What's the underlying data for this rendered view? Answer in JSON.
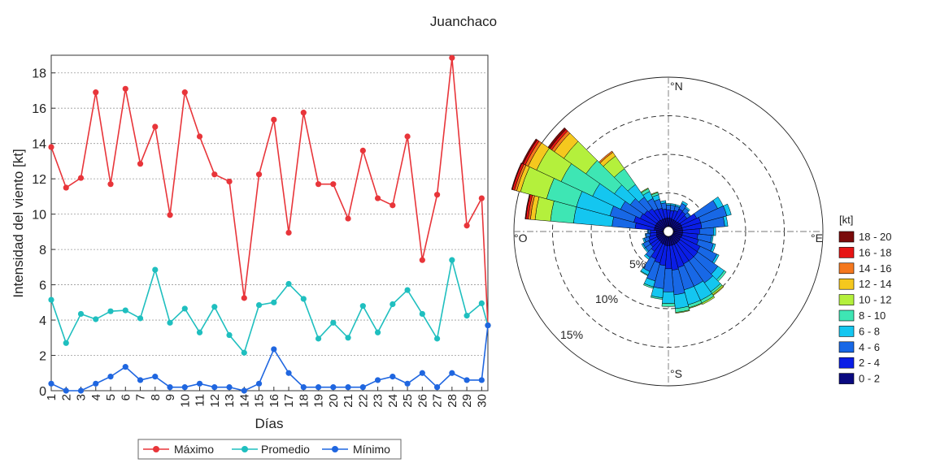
{
  "figure_title": "Juanchaco",
  "chart_data": [
    {
      "type": "line",
      "xlabel": "Días",
      "ylabel": "Intensidad del viento [kt]",
      "ylim": [
        0,
        19
      ],
      "grid": true,
      "legend_placement": "bottom",
      "x": [
        1,
        2,
        3,
        4,
        5,
        6,
        7,
        8,
        9,
        10,
        11,
        12,
        13,
        14,
        15,
        16,
        17,
        18,
        19,
        20,
        21,
        22,
        23,
        24,
        25,
        26,
        27,
        28,
        29,
        30
      ],
      "series": [
        {
          "name": "Máximo",
          "color": "#e8353a",
          "values": [
            13.8,
            11.5,
            12.05,
            16.9,
            11.7,
            17.1,
            12.85,
            14.95,
            9.95,
            16.9,
            14.4,
            12.25,
            11.85,
            5.25,
            12.25,
            15.35,
            8.95,
            15.75,
            11.7,
            11.7,
            9.75,
            13.6,
            10.9,
            10.5,
            14.4,
            7.4,
            11.1,
            18.85,
            9.35,
            10.9
          ]
        },
        {
          "name": "Promedio",
          "color": "#1fbfbf",
          "values": [
            5.15,
            2.7,
            4.35,
            4.05,
            4.5,
            4.55,
            4.1,
            6.85,
            3.85,
            4.65,
            3.3,
            4.75,
            3.15,
            2.15,
            4.85,
            5.0,
            6.05,
            5.2,
            2.95,
            3.85,
            3.0,
            4.8,
            3.3,
            4.9,
            5.7,
            4.35,
            2.95,
            7.4,
            4.25,
            4.95
          ]
        },
        {
          "name": "Mínimo",
          "color": "#1f66e0",
          "values": [
            0.4,
            0.0,
            0.0,
            0.4,
            0.8,
            1.35,
            0.6,
            0.8,
            0.2,
            0.2,
            0.4,
            0.2,
            0.2,
            0.0,
            0.4,
            2.35,
            1.0,
            0.2,
            0.2,
            0.2,
            0.2,
            0.2,
            0.6,
            0.8,
            0.4,
            1.0,
            0.2,
            1.0,
            0.6,
            0.6
          ]
        }
      ],
      "series_end_value": 3.7
    },
    {
      "type": "windrose",
      "directions": [
        "°N",
        "°E",
        "°S",
        "°O"
      ],
      "radial_ticks": [
        "5%",
        "10%",
        "15%"
      ],
      "radial_max_percent": 20,
      "legend_title": "[kt]",
      "bins": [
        "0 - 2",
        "2 - 4",
        "4 - 6",
        "6 - 8",
        "8 - 10",
        "10 - 12",
        "12 - 14",
        "14 - 16",
        "16 - 18",
        "18 - 20"
      ],
      "bin_colors": [
        "#0a0a80",
        "#0a1ee6",
        "#1868e6",
        "#14c6f0",
        "#3ee6b4",
        "#b4f03c",
        "#f5c81e",
        "#f5781e",
        "#e61414",
        "#7a0a0a"
      ],
      "sectors": [
        {
          "dir": 0,
          "pct": [
            1.1,
            1.1,
            0.6,
            0.2
          ]
        },
        {
          "dir": 10,
          "pct": [
            1.1,
            1.0,
            0.7,
            0.2
          ]
        },
        {
          "dir": 20,
          "pct": [
            1.0,
            1.2,
            0.6,
            0.2
          ]
        },
        {
          "dir": 30,
          "pct": [
            1.0,
            1.6,
            0.8,
            0.3
          ]
        },
        {
          "dir": 40,
          "pct": [
            1.0,
            1.5,
            0.6,
            0.2
          ]
        },
        {
          "dir": 50,
          "pct": [
            1.1,
            1.2,
            0.5,
            0.1
          ]
        },
        {
          "dir": 60,
          "pct": [
            1.2,
            2.2,
            3.0,
            0.8
          ]
        },
        {
          "dir": 70,
          "pct": [
            1.2,
            2.5,
            3.5,
            0.6
          ]
        },
        {
          "dir": 80,
          "pct": [
            1.2,
            2.5,
            3.0,
            0.4
          ]
        },
        {
          "dir": 90,
          "pct": [
            1.2,
            2.2,
            1.8,
            0.3
          ]
        },
        {
          "dir": 100,
          "pct": [
            1.2,
            2.0,
            1.8,
            0.2
          ]
        },
        {
          "dir": 110,
          "pct": [
            1.2,
            2.2,
            2.0,
            0.3
          ]
        },
        {
          "dir": 120,
          "pct": [
            1.1,
            2.8,
            2.4,
            0.3
          ]
        },
        {
          "dir": 130,
          "pct": [
            1.2,
            2.8,
            3.2,
            1.0,
            0.3
          ]
        },
        {
          "dir": 140,
          "pct": [
            1.2,
            2.8,
            3.5,
            1.4,
            0.3,
            0.2,
            0.1
          ]
        },
        {
          "dir": 150,
          "pct": [
            1.2,
            2.8,
            3.2,
            2.0,
            0.4,
            0.2
          ]
        },
        {
          "dir": 160,
          "pct": [
            1.2,
            3.0,
            3.0,
            2.0,
            0.4,
            0.1
          ]
        },
        {
          "dir": 170,
          "pct": [
            1.2,
            3.2,
            3.2,
            1.8,
            0.5,
            0.1
          ]
        },
        {
          "dir": 180,
          "pct": [
            1.2,
            3.0,
            3.0,
            1.5,
            0.4
          ]
        },
        {
          "dir": 190,
          "pct": [
            1.2,
            2.6,
            3.0,
            1.2,
            0.2
          ]
        },
        {
          "dir": 200,
          "pct": [
            1.1,
            2.5,
            2.4,
            0.8,
            0.2
          ]
        },
        {
          "dir": 210,
          "pct": [
            1.1,
            2.2,
            1.8,
            0.5,
            0.1
          ]
        },
        {
          "dir": 220,
          "pct": [
            1.0,
            1.5,
            1.0,
            0.3
          ]
        },
        {
          "dir": 230,
          "pct": [
            1.0,
            1.2,
            0.8,
            0.2
          ]
        },
        {
          "dir": 240,
          "pct": [
            1.0,
            1.2,
            0.8,
            0.2
          ]
        },
        {
          "dir": 250,
          "pct": [
            1.0,
            1.0,
            0.6,
            0.2
          ]
        },
        {
          "dir": 260,
          "pct": [
            0.9,
            0.9,
            0.5,
            0.1
          ]
        },
        {
          "dir": 270,
          "pct": [
            0.9,
            0.8,
            0.3,
            0.1
          ]
        },
        {
          "dir": 280,
          "pct": [
            1.2,
            2.5,
            3.0,
            5.0,
            3.0,
            2.0,
            0.6,
            0.3,
            0.3,
            0.1
          ]
        },
        {
          "dir": 290,
          "pct": [
            1.2,
            2.8,
            3.2,
            4.5,
            4.0,
            3.5,
            0.5,
            0.3,
            0.3,
            0.1
          ]
        },
        {
          "dir": 300,
          "pct": [
            1.2,
            2.2,
            2.8,
            4.0,
            4.5,
            3.5,
            1.2,
            0.4,
            0.3,
            0.2
          ]
        },
        {
          "dir": 310,
          "pct": [
            1.2,
            2.0,
            2.2,
            2.5,
            4.5,
            3.5,
            1.5,
            0.4,
            0.3,
            0.3
          ]
        },
        {
          "dir": 320,
          "pct": [
            1.2,
            1.8,
            1.8,
            2.0,
            2.5,
            2.0,
            0.6,
            0.2
          ]
        },
        {
          "dir": 330,
          "pct": [
            1.1,
            1.5,
            1.5,
            1.0,
            0.4,
            0.1
          ]
        },
        {
          "dir": 340,
          "pct": [
            1.1,
            1.4,
            1.2,
            0.6,
            0.3,
            0.1
          ]
        },
        {
          "dir": 350,
          "pct": [
            1.1,
            1.2,
            0.8,
            0.3
          ]
        }
      ]
    }
  ]
}
